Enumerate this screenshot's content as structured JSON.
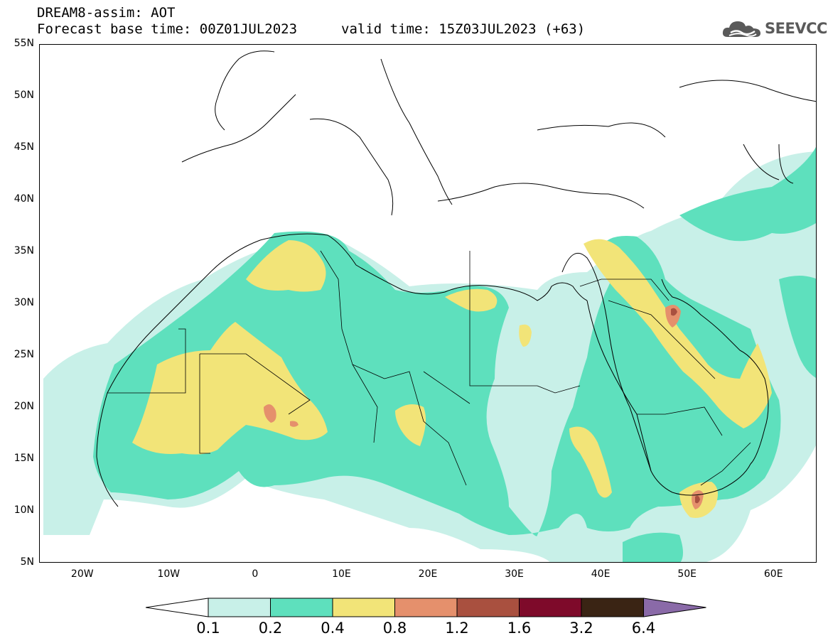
{
  "header": {
    "title": "DREAM8-assim: AOT",
    "base_time": "Forecast base time: 00Z01JUL2023",
    "valid_time": "valid time: 15Z03JUL2023 (+63)"
  },
  "logo": {
    "text": "SEEVCCC",
    "icon": "cloud-icon"
  },
  "map": {
    "region": {
      "lon_range": [
        -25,
        65
      ],
      "lat_range": [
        5,
        55
      ]
    },
    "lat_labels": [
      "55N",
      "50N",
      "45N",
      "40N",
      "35N",
      "30N",
      "25N",
      "20N",
      "15N",
      "10N",
      "5N"
    ],
    "lon_labels": [
      "20W",
      "10W",
      "0",
      "10E",
      "20E",
      "30E",
      "40E",
      "50E",
      "60E"
    ]
  },
  "legend": {
    "labels": [
      "0.1",
      "0.2",
      "0.4",
      "0.8",
      "1.2",
      "1.6",
      "3.2",
      "6.4"
    ],
    "colors": [
      "#ffffff",
      "#c8f0e8",
      "#5ee0bd",
      "#f2e478",
      "#e5906c",
      "#a9503f",
      "#7e0a2a",
      "#3a2414",
      "#8a6aa8"
    ]
  }
}
